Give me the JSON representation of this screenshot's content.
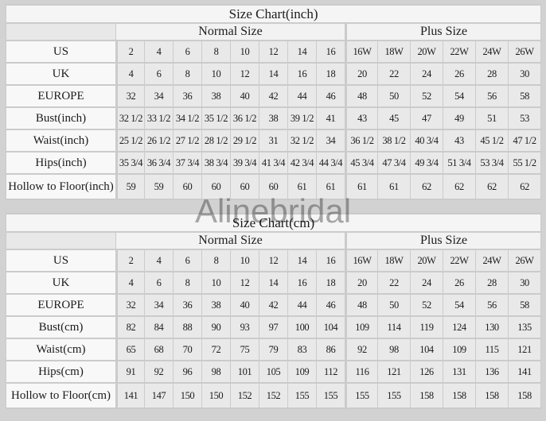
{
  "watermark": "Alinebridal",
  "colors": {
    "page_bg": "#d2d2d2",
    "grid_line": "#cbcbcb",
    "title_row_bg": "#f5f5f5",
    "group_header_bg": "#f2f2f2",
    "label_cell_bg": "#f8f8f8",
    "data_cell_bg": "#e9e9e9",
    "text": "#1c1c1c",
    "watermark": "#acacac"
  },
  "tables": [
    {
      "title": "Size Chart(inch)",
      "normal_header": "Normal Size",
      "plus_header": "Plus Size",
      "rows": [
        {
          "label": "US",
          "normal": [
            "2",
            "4",
            "6",
            "8",
            "10",
            "12",
            "14",
            "16"
          ],
          "plus": [
            "16W",
            "18W",
            "20W",
            "22W",
            "24W",
            "26W"
          ]
        },
        {
          "label": "UK",
          "normal": [
            "4",
            "6",
            "8",
            "10",
            "12",
            "14",
            "16",
            "18"
          ],
          "plus": [
            "20",
            "22",
            "24",
            "26",
            "28",
            "30"
          ]
        },
        {
          "label": "EUROPE",
          "normal": [
            "32",
            "34",
            "36",
            "38",
            "40",
            "42",
            "44",
            "46"
          ],
          "plus": [
            "48",
            "50",
            "52",
            "54",
            "56",
            "58"
          ]
        },
        {
          "label": "Bust(inch)",
          "normal": [
            "32 1/2",
            "33 1/2",
            "34 1/2",
            "35 1/2",
            "36 1/2",
            "38",
            "39 1/2",
            "41"
          ],
          "plus": [
            "43",
            "45",
            "47",
            "49",
            "51",
            "53"
          ]
        },
        {
          "label": "Waist(inch)",
          "normal": [
            "25 1/2",
            "26 1/2",
            "27 1/2",
            "28 1/2",
            "29 1/2",
            "31",
            "32 1/2",
            "34"
          ],
          "plus": [
            "36 1/2",
            "38 1/2",
            "40 3/4",
            "43",
            "45 1/2",
            "47 1/2"
          ]
        },
        {
          "label": "Hips(inch)",
          "normal": [
            "35 3/4",
            "36 3/4",
            "37 3/4",
            "38 3/4",
            "39 3/4",
            "41 3/4",
            "42 3/4",
            "44 3/4"
          ],
          "plus": [
            "45 3/4",
            "47 3/4",
            "49 3/4",
            "51 3/4",
            "53 3/4",
            "55 1/2"
          ]
        },
        {
          "label": "Hollow to Floor(inch)",
          "normal": [
            "59",
            "59",
            "60",
            "60",
            "60",
            "60",
            "61",
            "61"
          ],
          "plus": [
            "61",
            "61",
            "62",
            "62",
            "62",
            "62"
          ]
        }
      ]
    },
    {
      "title": "Size Chart(cm)",
      "normal_header": "Normal Size",
      "plus_header": "Plus Size",
      "rows": [
        {
          "label": "US",
          "normal": [
            "2",
            "4",
            "6",
            "8",
            "10",
            "12",
            "14",
            "16"
          ],
          "plus": [
            "16W",
            "18W",
            "20W",
            "22W",
            "24W",
            "26W"
          ]
        },
        {
          "label": "UK",
          "normal": [
            "4",
            "6",
            "8",
            "10",
            "12",
            "14",
            "16",
            "18"
          ],
          "plus": [
            "20",
            "22",
            "24",
            "26",
            "28",
            "30"
          ]
        },
        {
          "label": "EUROPE",
          "normal": [
            "32",
            "34",
            "36",
            "38",
            "40",
            "42",
            "44",
            "46"
          ],
          "plus": [
            "48",
            "50",
            "52",
            "54",
            "56",
            "58"
          ]
        },
        {
          "label": "Bust(cm)",
          "normal": [
            "82",
            "84",
            "88",
            "90",
            "93",
            "97",
            "100",
            "104"
          ],
          "plus": [
            "109",
            "114",
            "119",
            "124",
            "130",
            "135"
          ]
        },
        {
          "label": "Waist(cm)",
          "normal": [
            "65",
            "68",
            "70",
            "72",
            "75",
            "79",
            "83",
            "86"
          ],
          "plus": [
            "92",
            "98",
            "104",
            "109",
            "115",
            "121"
          ]
        },
        {
          "label": "Hips(cm)",
          "normal": [
            "91",
            "92",
            "96",
            "98",
            "101",
            "105",
            "109",
            "112"
          ],
          "plus": [
            "116",
            "121",
            "126",
            "131",
            "136",
            "141"
          ]
        },
        {
          "label": "Hollow to Floor(cm)",
          "normal": [
            "141",
            "147",
            "150",
            "150",
            "152",
            "152",
            "155",
            "155"
          ],
          "plus": [
            "155",
            "155",
            "158",
            "158",
            "158",
            "158"
          ]
        }
      ]
    }
  ]
}
